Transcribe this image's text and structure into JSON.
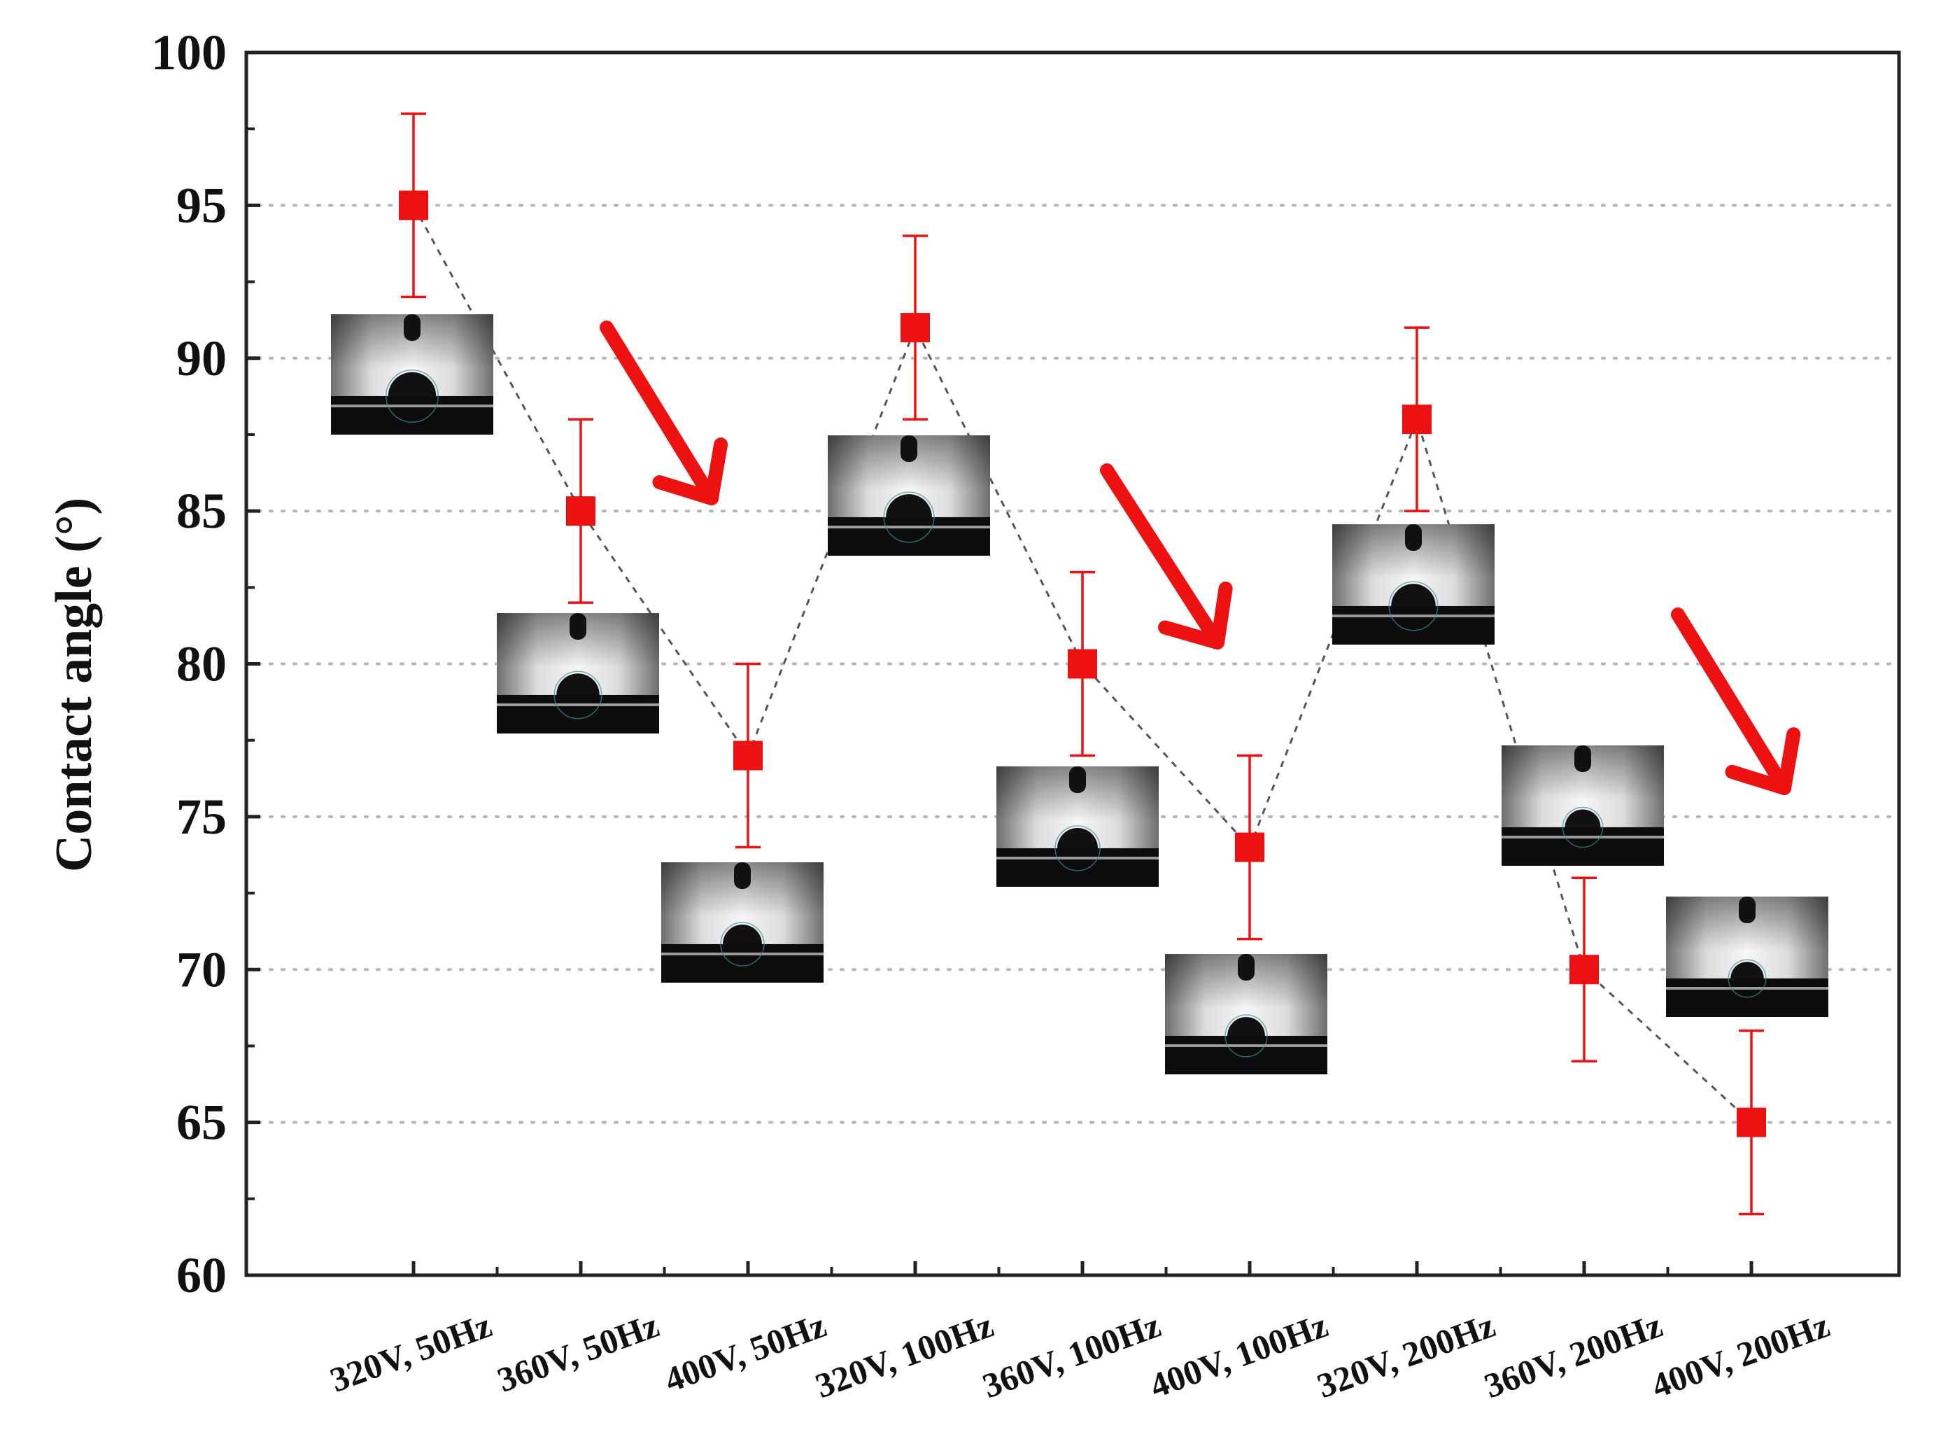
{
  "chart_data": {
    "type": "scatter",
    "title": "",
    "xlabel": "",
    "ylabel": "Contact angle (°)",
    "ylim": [
      60,
      100
    ],
    "yticks": [
      60,
      65,
      70,
      75,
      80,
      85,
      90,
      95,
      100
    ],
    "grid": "horizontal dotted",
    "categories": [
      "320V, 50Hz",
      "360V, 50Hz",
      "400V, 50Hz",
      "320V, 100Hz",
      "360V, 100Hz",
      "400V, 100Hz",
      "320V, 200Hz",
      "360V, 200Hz",
      "400V, 200Hz"
    ],
    "series": [
      {
        "values": [
          95,
          85,
          77,
          91,
          80,
          74,
          88,
          70,
          65
        ],
        "errors": [
          3,
          3,
          3,
          3,
          3,
          3,
          3,
          3,
          3
        ],
        "color": "#ee1111",
        "marker": "square",
        "line": "dashed",
        "line_color": "#555555"
      }
    ],
    "inset_images": {
      "description": "droplet contact-angle photos, one per condition",
      "count": 9
    },
    "trend_arrows": {
      "color": "#ee1111",
      "count": 3,
      "direction": "down-right"
    }
  }
}
